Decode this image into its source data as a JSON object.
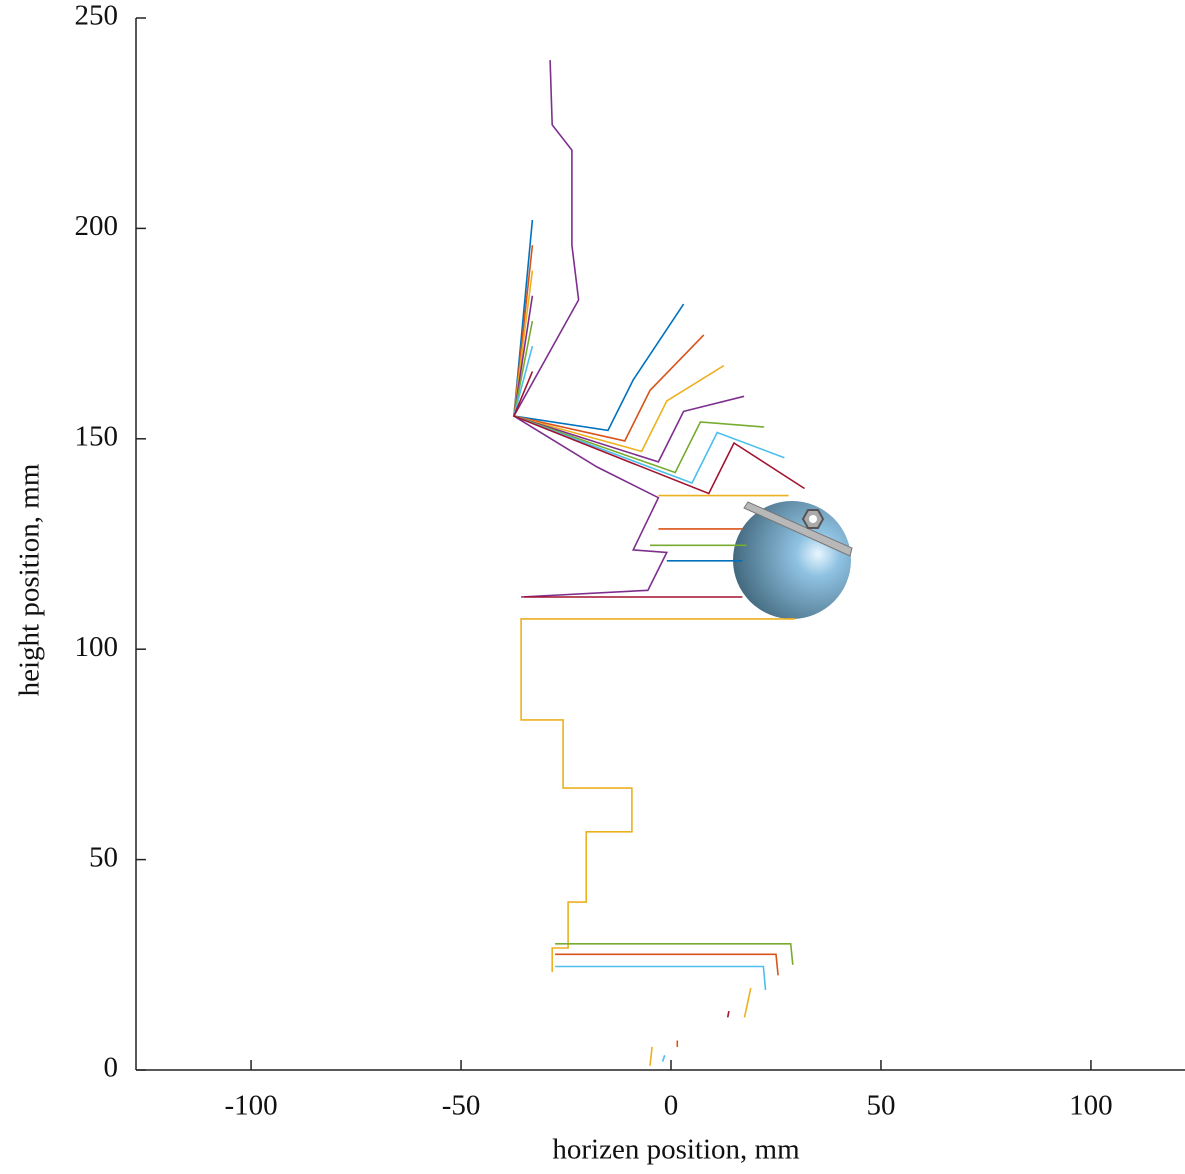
{
  "chart_data": {
    "type": "line",
    "x_label": "horizen position, mm",
    "y_label": "height position, mm",
    "xlim": [
      -127.4,
      122.4
    ],
    "ylim": [
      0,
      250
    ],
    "xticks": [
      -100,
      -50,
      0,
      50,
      100
    ],
    "yticks": [
      0,
      50,
      100,
      150,
      200,
      250
    ],
    "series": [
      {
        "color": "#EDB120",
        "x": [
          -28.3,
          -28.3,
          -24.5,
          -24.5,
          -20.2,
          -20.2,
          -9.3,
          -9.3,
          -25.7,
          -25.7,
          -35.7,
          -35.7,
          29.5
        ],
        "values": [
          23.3,
          29,
          29,
          39.9,
          39.9,
          56.6,
          56.6,
          67,
          67,
          83.2,
          83.2,
          107.2,
          107.2
        ]
      },
      {
        "color": "#7E2F8E",
        "x": [
          -35.7,
          -5.5,
          -1,
          -9,
          -3,
          -17.6,
          -37.4,
          -22,
          -23.6,
          -23.6,
          -28.3,
          -28.8
        ],
        "values": [
          112.4,
          114,
          123,
          123.6,
          136,
          143.3,
          155.4,
          183,
          196,
          218.6,
          224.6,
          240
        ]
      },
      {
        "color": "#A2142F",
        "x": [
          -35,
          17
        ],
        "values": [
          112.4,
          112.4
        ]
      },
      {
        "color": "#0072BD",
        "x": [
          -1,
          17
        ],
        "values": [
          121,
          121
        ]
      },
      {
        "color": "#77AC30",
        "x": [
          -5,
          18
        ],
        "values": [
          124.7,
          124.7
        ]
      },
      {
        "color": "#D95319",
        "x": [
          -3,
          17
        ],
        "values": [
          128.6,
          128.6
        ]
      },
      {
        "color": "#EDB120",
        "x": [
          -3,
          28
        ],
        "values": [
          136.5,
          136.5
        ]
      },
      {
        "color": "#0072BD",
        "x": [
          -33,
          -37.4,
          -15,
          -9,
          3
        ],
        "values": [
          202,
          155.4,
          152,
          164,
          182
        ]
      },
      {
        "color": "#D95319",
        "x": [
          -33,
          -37.4,
          -11,
          -5,
          7.8
        ],
        "values": [
          196,
          155.4,
          149.5,
          161.5,
          174.7
        ]
      },
      {
        "color": "#EDB120",
        "x": [
          -33,
          -37.4,
          -7,
          -1,
          12.6
        ],
        "values": [
          190,
          155.4,
          147,
          159,
          167.4
        ]
      },
      {
        "color": "#7E2F8E",
        "x": [
          -33,
          -37.4,
          -3,
          3,
          17.4
        ],
        "values": [
          184,
          155.4,
          144.5,
          156.5,
          160.1
        ]
      },
      {
        "color": "#77AC30",
        "x": [
          -33,
          -37.4,
          1,
          7,
          22.2
        ],
        "values": [
          178,
          155.4,
          142,
          154,
          152.8
        ]
      },
      {
        "color": "#4DBEEE",
        "x": [
          -33,
          -37.4,
          5,
          11,
          27
        ],
        "values": [
          172,
          155.4,
          139.5,
          151.5,
          145.5
        ]
      },
      {
        "color": "#A2142F",
        "x": [
          -33,
          -37.4,
          9,
          15,
          31.8
        ],
        "values": [
          166,
          155.4,
          137,
          149,
          138.2
        ]
      },
      {
        "color": "#77AC30",
        "x": [
          -27.6,
          28.5,
          29
        ],
        "values": [
          30,
          30,
          25
        ]
      },
      {
        "color": "#D95319",
        "x": [
          -27.6,
          25,
          25.5
        ],
        "values": [
          27.5,
          27.5,
          22.5
        ]
      },
      {
        "color": "#4DBEEE",
        "x": [
          -27.6,
          22,
          22.5
        ],
        "values": [
          24.6,
          24.6,
          19
        ]
      },
      {
        "color": "#EDB120",
        "x": [
          -4.5,
          -5
        ],
        "values": [
          5.5,
          1
        ]
      },
      {
        "color": "#D95319",
        "x": [
          1.5,
          1.5
        ],
        "values": [
          7,
          5.5
        ]
      },
      {
        "color": "#4DBEEE",
        "x": [
          -1.5,
          -2
        ],
        "values": [
          3.5,
          2
        ]
      },
      {
        "color": "#A2142F",
        "x": [
          13.5,
          13.8
        ],
        "values": [
          12.5,
          14
        ]
      },
      {
        "color": "#EDB120",
        "x": [
          19,
          17.5
        ],
        "values": [
          19.5,
          12.5
        ]
      }
    ]
  }
}
